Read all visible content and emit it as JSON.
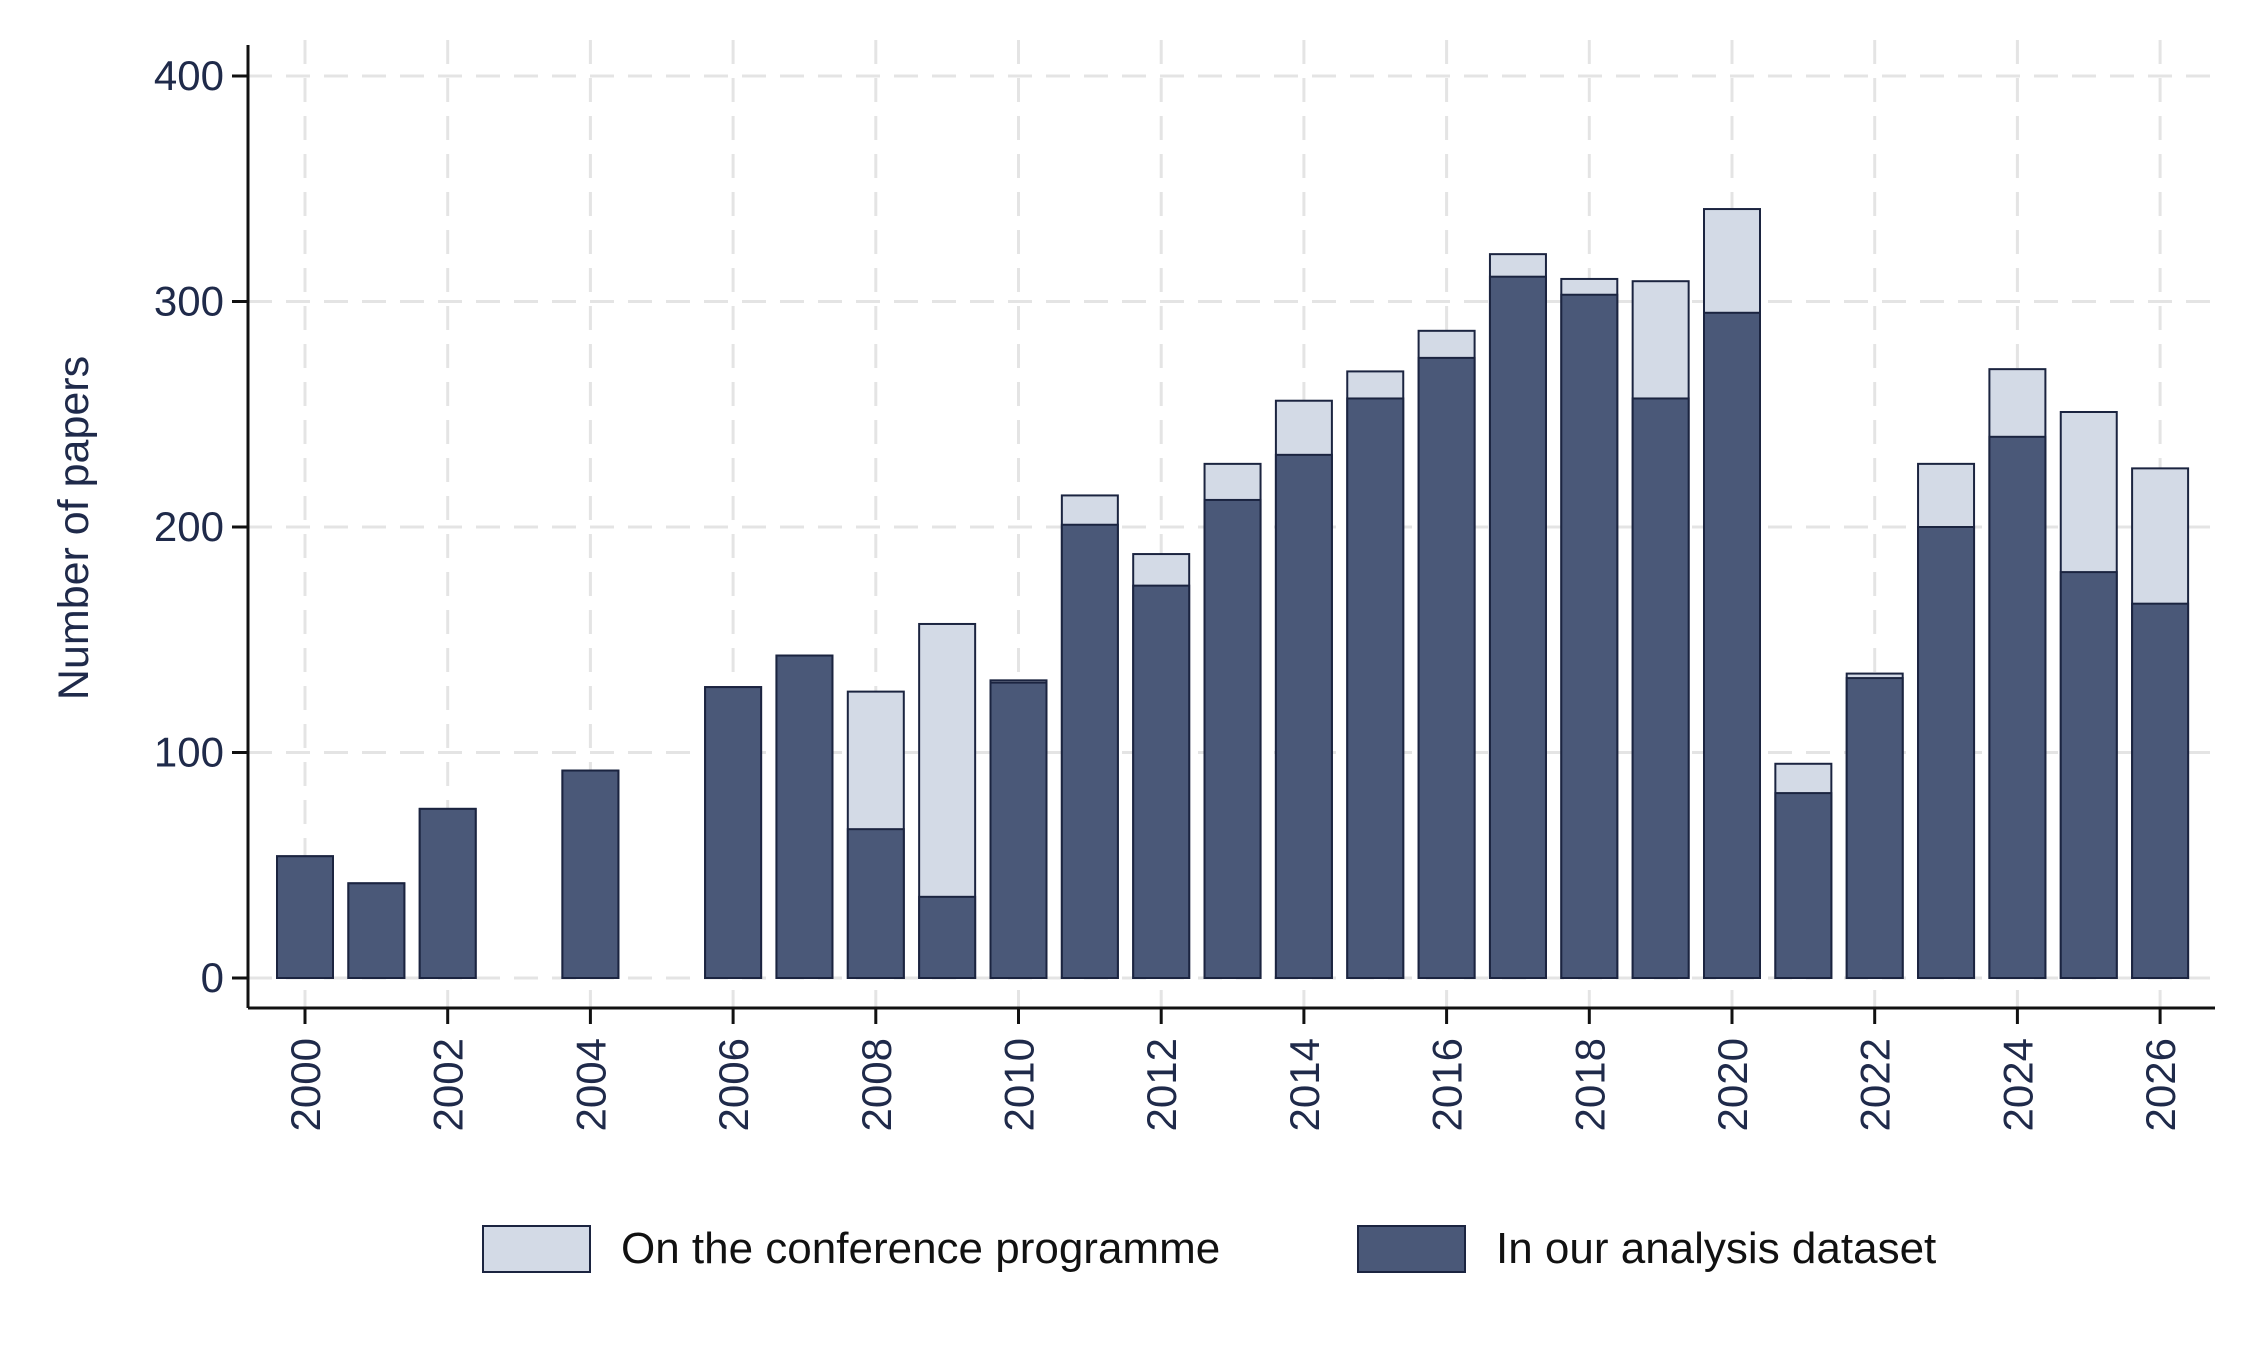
{
  "chart_data": {
    "type": "bar",
    "stacked": false,
    "overlapping": true,
    "ylabel": "Number of papers",
    "xlabel": "",
    "ylim": [
      0,
      400
    ],
    "yticks": [
      0,
      100,
      200,
      300,
      400
    ],
    "xticks": [
      2000,
      2002,
      2004,
      2006,
      2008,
      2010,
      2012,
      2014,
      2016,
      2018,
      2020,
      2022,
      2024,
      2026
    ],
    "xlim": [
      2000,
      2026
    ],
    "grid": true,
    "legend_position": "bottom",
    "colors": {
      "programme": "#d3dae6",
      "dataset": "#4a5878",
      "edge": "#1b2440"
    },
    "x": [
      2000,
      2001,
      2002,
      2004,
      2006,
      2007,
      2008,
      2009,
      2010,
      2011,
      2012,
      2013,
      2014,
      2015,
      2016,
      2017,
      2018,
      2019,
      2020,
      2021,
      2022,
      2023,
      2024,
      2025,
      2026
    ],
    "series": [
      {
        "name": "On the conference programme",
        "values": [
          54,
          42,
          75,
          92,
          129,
          143,
          127,
          157,
          132,
          214,
          188,
          228,
          256,
          269,
          287,
          321,
          310,
          309,
          341,
          95,
          135,
          228,
          270,
          251,
          226
        ]
      },
      {
        "name": "In our analysis dataset",
        "values": [
          54,
          42,
          75,
          92,
          129,
          143,
          66,
          36,
          131,
          201,
          174,
          212,
          232,
          257,
          275,
          311,
          303,
          257,
          295,
          82,
          133,
          200,
          240,
          180,
          166
        ]
      }
    ]
  }
}
